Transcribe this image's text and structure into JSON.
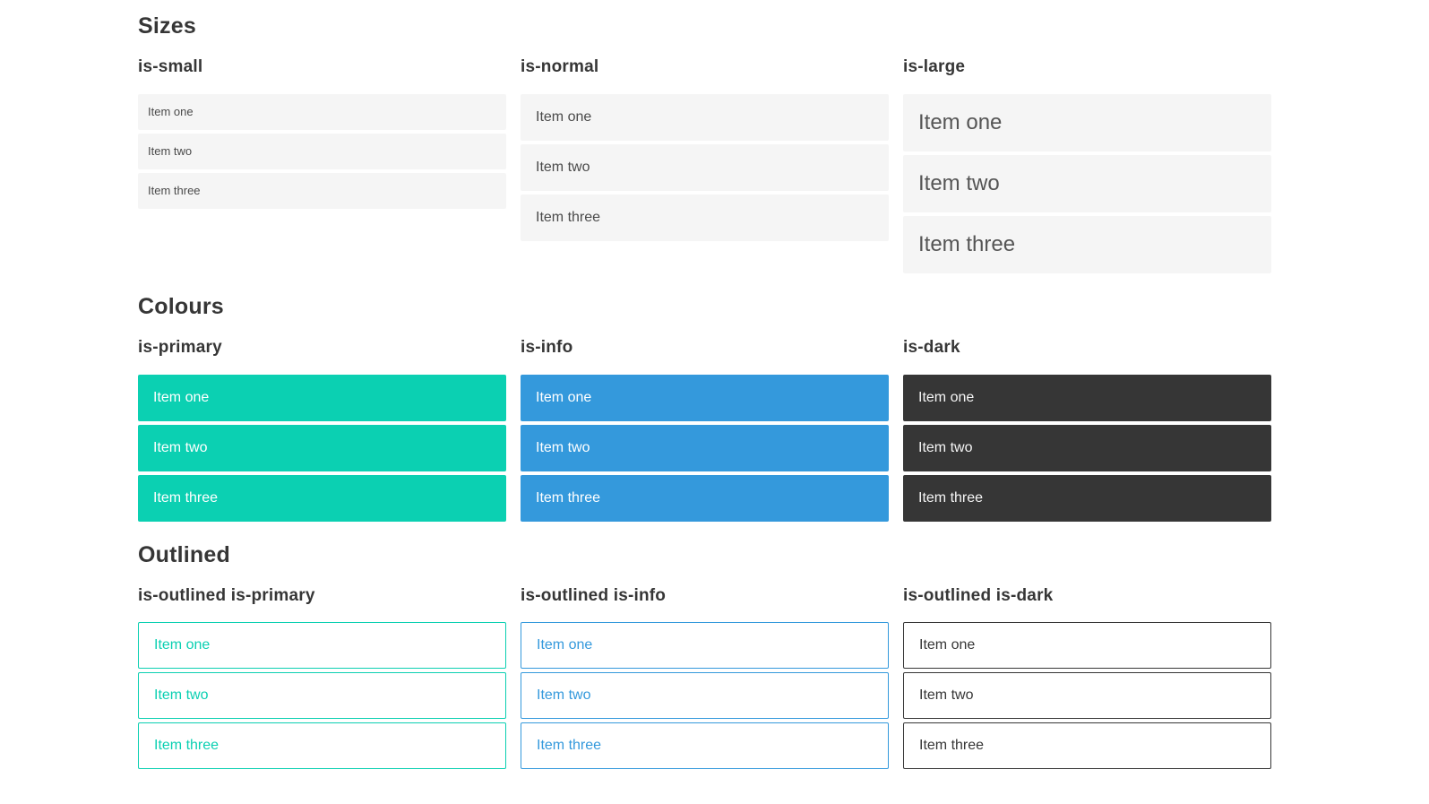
{
  "page": {
    "background": "#ffffff"
  },
  "colors": {
    "primary": "#0bd0b2",
    "info": "#3499dc",
    "dark": "#363636",
    "heading": "#363636",
    "item_bg": "#f5f5f5",
    "item_text": "#4a4a4a",
    "on_color_text": "#ffffff",
    "on_dark_text": "#f5f5f5"
  },
  "sections": [
    {
      "title": "Sizes",
      "groups": [
        {
          "label": "is-small",
          "items": [
            "Item one",
            "Item two",
            "Item three"
          ]
        },
        {
          "label": "is-normal",
          "items": [
            "Item one",
            "Item two",
            "Item three"
          ]
        },
        {
          "label": "is-large",
          "items": [
            "Item one",
            "Item two",
            "Item three"
          ]
        }
      ]
    },
    {
      "title": "Colours",
      "groups": [
        {
          "label": "is-primary",
          "items": [
            "Item one",
            "Item two",
            "Item three"
          ]
        },
        {
          "label": "is-info",
          "items": [
            "Item one",
            "Item two",
            "Item three"
          ]
        },
        {
          "label": "is-dark",
          "items": [
            "Item one",
            "Item two",
            "Item three"
          ]
        }
      ]
    },
    {
      "title": "Outlined",
      "groups": [
        {
          "label": "is-outlined is-primary",
          "items": [
            "Item one",
            "Item two",
            "Item three"
          ]
        },
        {
          "label": "is-outlined is-info",
          "items": [
            "Item one",
            "Item two",
            "Item three"
          ]
        },
        {
          "label": "is-outlined is-dark",
          "items": [
            "Item one",
            "Item two",
            "Item three"
          ]
        }
      ]
    }
  ]
}
